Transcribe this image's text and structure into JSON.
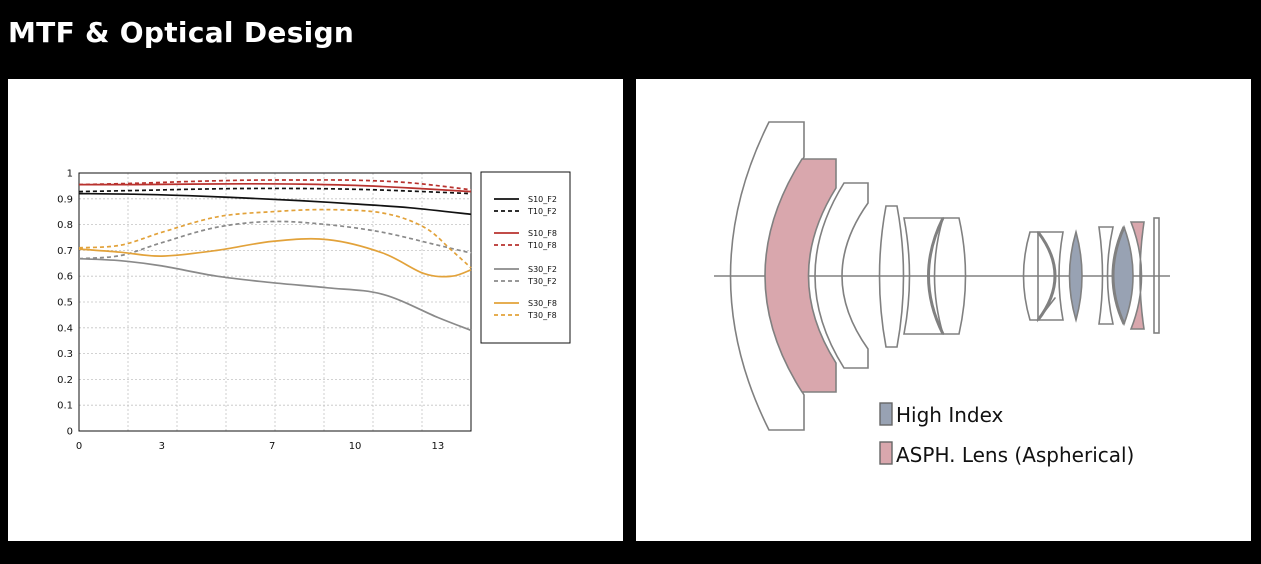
{
  "page": {
    "title": "MTF & Optical Design"
  },
  "colors": {
    "black": "#111111",
    "red": "#b8322e",
    "gray": "#8a8a8a",
    "orange": "#e2a23a",
    "high_index": "#98a2b3",
    "asph": "#d9a7ad",
    "outline": "#808080"
  },
  "chart_data": {
    "type": "line",
    "title": "",
    "xlabel": "",
    "ylabel": "",
    "xlim": [
      0,
      14.2
    ],
    "ylim": [
      0,
      1
    ],
    "grid": true,
    "legend_position": "right",
    "x_ticks": [
      0,
      3,
      7,
      10,
      13
    ],
    "y_ticks": [
      0,
      0.1,
      0.2,
      0.3,
      0.4,
      0.5,
      0.6,
      0.7,
      0.8,
      0.9,
      1
    ],
    "series": [
      {
        "name": "S10_F2",
        "color": "black",
        "dash": false,
        "x": [
          0,
          2,
          4,
          6,
          8,
          10,
          12,
          14.2
        ],
        "y": [
          0.92,
          0.918,
          0.912,
          0.903,
          0.893,
          0.88,
          0.865,
          0.84
        ]
      },
      {
        "name": "T10_F2",
        "color": "black",
        "dash": true,
        "x": [
          0,
          2,
          4,
          6,
          8,
          10,
          12,
          14.2
        ],
        "y": [
          0.928,
          0.932,
          0.937,
          0.94,
          0.94,
          0.937,
          0.93,
          0.92
        ]
      },
      {
        "name": "S10_F8",
        "color": "red",
        "dash": false,
        "x": [
          0,
          2,
          4,
          6,
          8,
          10,
          12,
          14.2
        ],
        "y": [
          0.955,
          0.955,
          0.957,
          0.958,
          0.957,
          0.952,
          0.942,
          0.928
        ]
      },
      {
        "name": "T10_F8",
        "color": "red",
        "dash": true,
        "x": [
          0,
          2,
          4,
          6,
          8,
          10,
          12,
          14.2
        ],
        "y": [
          0.955,
          0.96,
          0.967,
          0.972,
          0.973,
          0.972,
          0.962,
          0.935
        ]
      },
      {
        "name": "S30_F2",
        "color": "gray",
        "dash": false,
        "x": [
          0,
          1.5,
          3,
          5,
          7,
          9,
          11,
          13,
          14.2
        ],
        "y": [
          0.668,
          0.66,
          0.64,
          0.6,
          0.575,
          0.555,
          0.53,
          0.44,
          0.39
        ]
      },
      {
        "name": "T30_F2",
        "color": "gray",
        "dash": true,
        "x": [
          0,
          1.5,
          3,
          5,
          7,
          9,
          11,
          13,
          14.2
        ],
        "y": [
          0.668,
          0.68,
          0.73,
          0.79,
          0.812,
          0.8,
          0.77,
          0.72,
          0.69
        ]
      },
      {
        "name": "S30_F8",
        "color": "orange",
        "dash": false,
        "x": [
          0,
          1.5,
          3,
          5,
          7,
          9,
          11,
          12.5,
          13.5,
          14.2
        ],
        "y": [
          0.705,
          0.693,
          0.678,
          0.7,
          0.735,
          0.742,
          0.69,
          0.61,
          0.6,
          0.625
        ]
      },
      {
        "name": "T30_F8",
        "color": "orange",
        "dash": true,
        "x": [
          0,
          1.5,
          3,
          5,
          7,
          9,
          11,
          12.5,
          13.5,
          14.2
        ],
        "y": [
          0.71,
          0.72,
          0.77,
          0.83,
          0.85,
          0.858,
          0.845,
          0.79,
          0.7,
          0.632
        ]
      }
    ]
  },
  "optical_design": {
    "legend": [
      {
        "label": "High Index",
        "color": "high_index"
      },
      {
        "label": "ASPH. Lens (Aspherical)",
        "color": "asph"
      }
    ]
  }
}
